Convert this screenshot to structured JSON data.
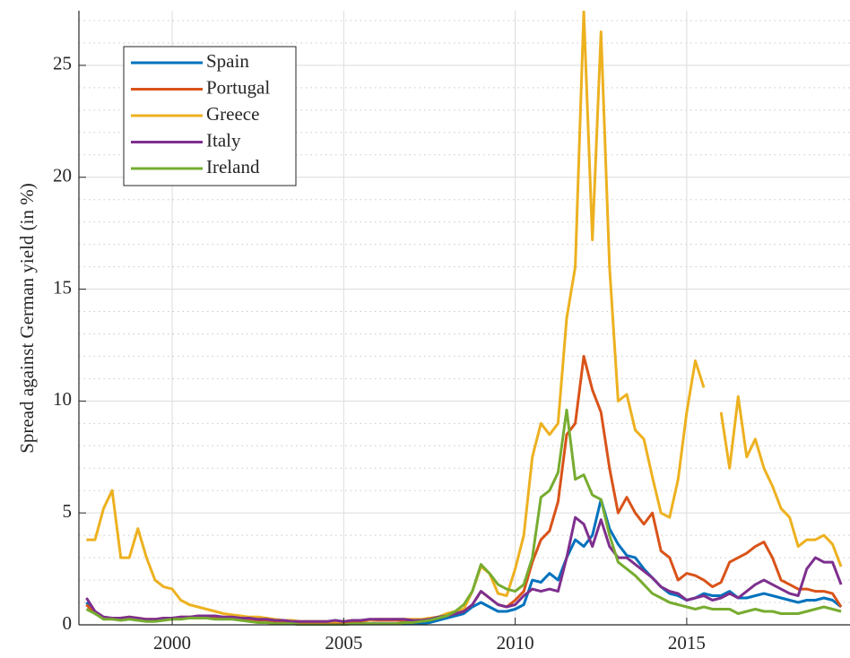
{
  "chart_data": {
    "type": "line",
    "ylabel": "Spread against German yield (in %)",
    "x": [
      1997.5,
      1997.75,
      1998,
      1998.25,
      1998.5,
      1998.75,
      1999,
      1999.25,
      1999.5,
      1999.75,
      2000,
      2000.25,
      2000.5,
      2000.75,
      2001,
      2001.25,
      2001.5,
      2001.75,
      2002,
      2002.25,
      2002.5,
      2002.75,
      2003,
      2003.25,
      2003.5,
      2003.75,
      2004,
      2004.25,
      2004.5,
      2004.75,
      2005,
      2005.25,
      2005.5,
      2005.75,
      2006,
      2006.25,
      2006.5,
      2006.75,
      2007,
      2007.25,
      2007.5,
      2007.75,
      2008,
      2008.25,
      2008.5,
      2008.75,
      2009,
      2009.25,
      2009.5,
      2009.75,
      2010,
      2010.25,
      2010.5,
      2010.75,
      2011,
      2011.25,
      2011.5,
      2011.75,
      2012,
      2012.25,
      2012.5,
      2012.75,
      2013,
      2013.25,
      2013.5,
      2013.75,
      2014,
      2014.25,
      2014.5,
      2014.75,
      2015,
      2015.25,
      2015.5,
      2015.75,
      2016,
      2016.25,
      2016.5,
      2016.75,
      2017,
      2017.25,
      2017.5,
      2017.75,
      2018,
      2018.25,
      2018.5,
      2018.75,
      2019,
      2019.25,
      2019.5
    ],
    "series": [
      {
        "name": "Spain",
        "color": "#0072BD",
        "values": [
          1.0,
          0.5,
          0.3,
          0.3,
          0.3,
          0.3,
          0.25,
          0.2,
          0.2,
          0.25,
          0.25,
          0.3,
          0.3,
          0.35,
          0.35,
          0.3,
          0.3,
          0.3,
          0.25,
          0.2,
          0.15,
          0.1,
          0.1,
          0.1,
          0.05,
          0.05,
          0.05,
          0.05,
          0.05,
          0.05,
          0.05,
          0.05,
          0.05,
          0.05,
          0.05,
          0.05,
          0.05,
          0.05,
          0.05,
          0.05,
          0.1,
          0.2,
          0.3,
          0.4,
          0.5,
          0.8,
          1.0,
          0.8,
          0.6,
          0.6,
          0.7,
          0.9,
          2.0,
          1.9,
          2.3,
          2.0,
          3.0,
          3.8,
          3.5,
          4.0,
          5.6,
          4.3,
          3.6,
          3.1,
          3.0,
          2.5,
          2.1,
          1.7,
          1.4,
          1.3,
          1.1,
          1.2,
          1.4,
          1.3,
          1.3,
          1.5,
          1.2,
          1.2,
          1.3,
          1.4,
          1.3,
          1.2,
          1.1,
          1.0,
          1.1,
          1.1,
          1.2,
          1.1,
          0.8
        ]
      },
      {
        "name": "Portugal",
        "color": "#D95319",
        "values": [
          0.9,
          0.5,
          0.3,
          0.3,
          0.3,
          0.35,
          0.3,
          0.25,
          0.25,
          0.3,
          0.3,
          0.35,
          0.35,
          0.35,
          0.4,
          0.35,
          0.35,
          0.3,
          0.3,
          0.25,
          0.2,
          0.2,
          0.15,
          0.15,
          0.1,
          0.1,
          0.1,
          0.1,
          0.1,
          0.1,
          0.1,
          0.15,
          0.15,
          0.2,
          0.2,
          0.2,
          0.2,
          0.2,
          0.2,
          0.2,
          0.25,
          0.3,
          0.4,
          0.5,
          0.6,
          0.9,
          1.5,
          1.2,
          0.9,
          0.8,
          1.1,
          1.5,
          2.8,
          3.8,
          4.2,
          5.5,
          8.5,
          9.0,
          12.0,
          10.5,
          9.5,
          7.0,
          5.0,
          5.7,
          5.0,
          4.5,
          5.0,
          3.3,
          3.0,
          2.0,
          2.3,
          2.2,
          2.0,
          1.7,
          1.9,
          2.8,
          3.0,
          3.2,
          3.5,
          3.7,
          3.0,
          2.0,
          1.8,
          1.6,
          1.6,
          1.5,
          1.5,
          1.4,
          0.8
        ]
      },
      {
        "name": "Greece",
        "color": "#EDB120",
        "values": [
          3.8,
          3.8,
          5.2,
          6.0,
          3.0,
          3.0,
          4.3,
          3.0,
          2.0,
          1.7,
          1.6,
          1.1,
          0.9,
          0.8,
          0.7,
          0.6,
          0.5,
          0.45,
          0.4,
          0.35,
          0.35,
          0.3,
          0.25,
          0.2,
          0.2,
          0.15,
          0.15,
          0.15,
          0.15,
          0.15,
          0.15,
          0.2,
          0.2,
          0.2,
          0.25,
          0.25,
          0.25,
          0.25,
          0.25,
          0.25,
          0.3,
          0.35,
          0.5,
          0.6,
          0.7,
          1.5,
          2.6,
          2.3,
          1.4,
          1.3,
          2.5,
          4.0,
          7.5,
          9.0,
          8.5,
          9.0,
          13.7,
          16.0,
          27.4,
          17.2,
          26.5,
          16.0,
          10.0,
          10.3,
          8.7,
          8.3,
          6.6,
          5.0,
          4.8,
          6.5,
          9.5,
          11.8,
          10.6,
          null,
          9.5,
          7.0,
          10.2,
          7.5,
          8.3,
          7.0,
          6.2,
          5.2,
          4.8,
          3.5,
          3.8,
          3.8,
          4.0,
          3.6,
          2.6
        ]
      },
      {
        "name": "Italy",
        "color": "#7E2F8E",
        "values": [
          1.2,
          0.6,
          0.35,
          0.3,
          0.3,
          0.35,
          0.3,
          0.25,
          0.25,
          0.3,
          0.3,
          0.35,
          0.35,
          0.4,
          0.4,
          0.4,
          0.35,
          0.35,
          0.3,
          0.3,
          0.25,
          0.25,
          0.2,
          0.2,
          0.15,
          0.15,
          0.15,
          0.15,
          0.15,
          0.2,
          0.15,
          0.2,
          0.2,
          0.25,
          0.25,
          0.25,
          0.25,
          0.25,
          0.2,
          0.2,
          0.25,
          0.35,
          0.4,
          0.5,
          0.6,
          0.9,
          1.5,
          1.2,
          0.9,
          0.8,
          0.9,
          1.3,
          1.6,
          1.5,
          1.6,
          1.5,
          3.0,
          4.8,
          4.5,
          3.5,
          4.7,
          3.5,
          3.0,
          3.0,
          2.7,
          2.4,
          2.1,
          1.7,
          1.5,
          1.4,
          1.1,
          1.2,
          1.3,
          1.1,
          1.2,
          1.4,
          1.2,
          1.5,
          1.8,
          2.0,
          1.8,
          1.6,
          1.4,
          1.3,
          2.5,
          3.0,
          2.8,
          2.8,
          1.8
        ]
      },
      {
        "name": "Ireland",
        "color": "#77AC30",
        "values": [
          0.7,
          0.5,
          0.25,
          0.25,
          0.2,
          0.25,
          0.2,
          0.15,
          0.15,
          0.2,
          0.25,
          0.25,
          0.3,
          0.3,
          0.3,
          0.25,
          0.25,
          0.25,
          0.2,
          0.15,
          0.1,
          0.1,
          0.05,
          0.05,
          0.05,
          0.0,
          0.0,
          0.0,
          0.0,
          0.0,
          0.0,
          0.05,
          0.05,
          0.05,
          0.05,
          0.05,
          0.05,
          0.1,
          0.1,
          0.15,
          0.2,
          0.3,
          0.4,
          0.6,
          0.9,
          1.5,
          2.7,
          2.3,
          1.8,
          1.6,
          1.5,
          1.8,
          3.0,
          5.7,
          6.0,
          6.8,
          9.6,
          6.5,
          6.7,
          5.8,
          5.6,
          4.0,
          2.8,
          2.5,
          2.2,
          1.8,
          1.4,
          1.2,
          1.0,
          0.9,
          0.8,
          0.7,
          0.8,
          0.7,
          0.7,
          0.7,
          0.5,
          0.6,
          0.7,
          0.6,
          0.6,
          0.5,
          0.5,
          0.5,
          0.6,
          0.7,
          0.8,
          0.7,
          0.6
        ]
      }
    ],
    "xlim": [
      1997.28,
      2019.76
    ],
    "ylim": [
      0,
      27.44
    ],
    "xticks": [
      2000,
      2005,
      2010,
      2015
    ],
    "yticks": [
      0,
      5,
      10,
      15,
      20,
      25
    ],
    "yminorticks": [
      1,
      2,
      3,
      4,
      6,
      7,
      8,
      9,
      11,
      12,
      13,
      14,
      16,
      17,
      18,
      19,
      21,
      22,
      23,
      24,
      26,
      27
    ],
    "grid": true,
    "legend": "upper left"
  }
}
